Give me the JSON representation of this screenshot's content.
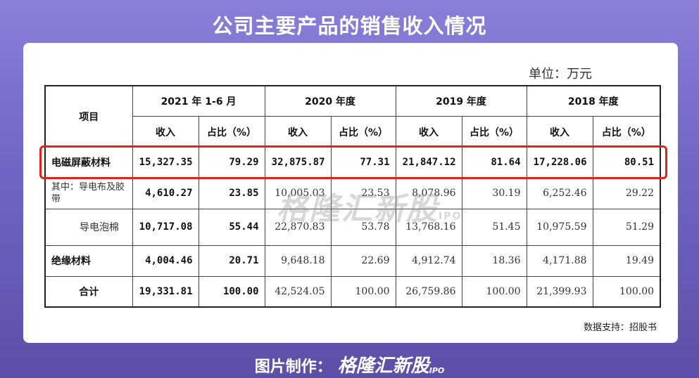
{
  "title": "公司主要产品的销售收入情况",
  "unit_label": "单位：万元",
  "table": {
    "item_header": "项目",
    "periods": [
      "2021 年 1-6 月",
      "2020 年度",
      "2019 年度",
      "2018 年度"
    ],
    "sub_headers": [
      "收入",
      "占比（%）"
    ],
    "rows": [
      {
        "label": "电磁屏蔽材料",
        "values": [
          "15,327.35",
          "79.29",
          "32,875.87",
          "77.31",
          "21,847.12",
          "81.64",
          "17,228.06",
          "80.51"
        ]
      },
      {
        "label": "其中：导电布及胶带",
        "values": [
          "4,610.27",
          "23.85",
          "10,005.03",
          "23.53",
          "8,078.96",
          "30.19",
          "6,252.46",
          "29.22"
        ]
      },
      {
        "label": "导电泡棉",
        "values": [
          "10,717.08",
          "55.44",
          "22,870.83",
          "53.78",
          "13,768.16",
          "51.45",
          "10,975.59",
          "51.29"
        ]
      },
      {
        "label": "绝缘材料",
        "values": [
          "4,004.46",
          "20.71",
          "9,648.18",
          "22.69",
          "4,912.74",
          "18.36",
          "4,171.88",
          "19.49"
        ]
      },
      {
        "label": "合计",
        "values": [
          "19,331.81",
          "100.00",
          "42,524.05",
          "100.00",
          "26,759.86",
          "100.00",
          "21,399.93",
          "100.00"
        ]
      }
    ]
  },
  "watermark": {
    "text": "格隆汇新股",
    "sub": "IPO"
  },
  "source": "数据支持：招股书",
  "footer": {
    "label": "图片制作：",
    "brand": "格隆汇新股",
    "ipo": "IPO"
  },
  "colors": {
    "highlight_border": "#e0231c",
    "background": "#6f66c4"
  }
}
